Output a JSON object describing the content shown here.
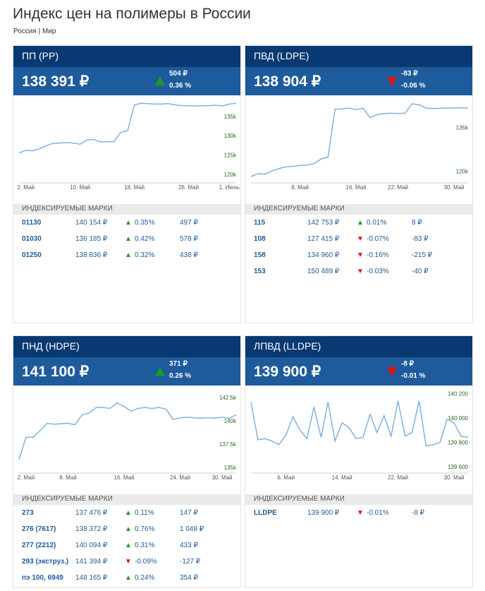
{
  "page": {
    "title": "Индекс цен на полимеры в России",
    "region_russia": "Россия",
    "region_sep": " | ",
    "region_world": "Мир"
  },
  "colors": {
    "header": "#083972",
    "price_bar": "#1e5b9c",
    "up": "#1a9a2b",
    "down": "#e01010",
    "line": "#7fb2e5"
  },
  "cards": [
    {
      "title": "ПП (PP)",
      "price": "138 391 ₽",
      "direction": "up",
      "change_abs": "504 ₽",
      "change_pct": "0.36 %",
      "grades_label": "ИНДЕКСИРУЕМЫЕ МАРКИ",
      "grades": [
        {
          "name": "01130",
          "price": "140 154 ₽",
          "dir": "up",
          "arrow": "▲",
          "pct": "0.35%",
          "abs": "497 ₽"
        },
        {
          "name": "01030",
          "price": "136 185 ₽",
          "dir": "up",
          "arrow": "▲",
          "pct": "0.42%",
          "abs": "578 ₽"
        },
        {
          "name": "01250",
          "price": "138 836 ₽",
          "dir": "up",
          "arrow": "▲",
          "pct": "0.32%",
          "abs": "438 ₽"
        }
      ]
    },
    {
      "title": "ПВД (LDPE)",
      "price": "138 904 ₽",
      "direction": "down",
      "change_abs": "-83 ₽",
      "change_pct": "-0.06 %",
      "grades_label": "ИНДЕКСИРУЕМЫЕ МАРКИ",
      "grades": [
        {
          "name": "115",
          "price": "142 753 ₽",
          "dir": "up",
          "arrow": "▲",
          "pct": "0.01%",
          "abs": "8 ₽"
        },
        {
          "name": "108",
          "price": "127 415 ₽",
          "dir": "down",
          "arrow": "▼",
          "pct": "-0.07%",
          "abs": "-83 ₽"
        },
        {
          "name": "158",
          "price": "134 960 ₽",
          "dir": "down",
          "arrow": "▼",
          "pct": "-0.16%",
          "abs": "-215 ₽"
        },
        {
          "name": "153",
          "price": "150 489 ₽",
          "dir": "down",
          "arrow": "▼",
          "pct": "-0.03%",
          "abs": "-40 ₽"
        }
      ]
    },
    {
      "title": "ПНД (HDPE)",
      "price": "141 100 ₽",
      "direction": "up",
      "change_abs": "371 ₽",
      "change_pct": "0.26 %",
      "grades_label": "ИНДЕКСИРУЕМЫЕ МАРКИ",
      "grades": [
        {
          "name": "273",
          "price": "137 476 ₽",
          "dir": "up",
          "arrow": "▲",
          "pct": "0.11%",
          "abs": "147 ₽"
        },
        {
          "name": "276 (7617)",
          "price": "138 372 ₽",
          "dir": "up",
          "arrow": "▲",
          "pct": "0.76%",
          "abs": "1 048 ₽"
        },
        {
          "name": "277 (2212)",
          "price": "140 094 ₽",
          "dir": "up",
          "arrow": "▲",
          "pct": "0.31%",
          "abs": "433 ₽"
        },
        {
          "name": "293 (экструз.)",
          "price": "141 394 ₽",
          "dir": "down",
          "arrow": "▼",
          "pct": "-0.09%",
          "abs": "-127 ₽"
        },
        {
          "name": "пэ 100, 6949",
          "price": "148 165 ₽",
          "dir": "up",
          "arrow": "▲",
          "pct": "0.24%",
          "abs": "354 ₽"
        }
      ]
    },
    {
      "title": "ЛПВД (LLDPE)",
      "price": "139 900 ₽",
      "direction": "down",
      "change_abs": "-8 ₽",
      "change_pct": "-0.01 %",
      "grades_label": "ИНДЕКСИРУЕМЫЕ МАРКИ",
      "grades": [
        {
          "name": "LLDPE",
          "price": "139 900 ₽",
          "dir": "down",
          "arrow": "▼",
          "pct": "-0.01%",
          "abs": "-8 ₽"
        }
      ]
    }
  ],
  "chart_data": [
    {
      "type": "line",
      "title": "ПП (PP)",
      "ylim": [
        118500,
        139000
      ],
      "yticks": [
        120000,
        125000,
        130000,
        135000
      ],
      "ytick_labels": [
        "120k",
        "125k",
        "130k",
        "135k"
      ],
      "xticks": [
        {
          "x": 2,
          "label": "2. Май"
        },
        {
          "x": 10,
          "label": "10. Май"
        },
        {
          "x": 18,
          "label": "18. Май"
        },
        {
          "x": 26,
          "label": "26. Май"
        },
        {
          "x": 32,
          "label": "1. Июнь"
        }
      ],
      "xlim": [
        1,
        33
      ],
      "x": [
        1,
        2,
        3,
        4,
        5,
        6,
        7,
        8,
        9,
        10,
        11,
        12,
        13,
        14,
        15,
        16,
        17,
        18,
        19,
        20,
        21,
        22,
        23,
        24,
        25,
        26,
        27,
        28,
        29,
        30,
        31,
        32,
        33
      ],
      "y": [
        125500,
        126200,
        126100,
        126600,
        127400,
        128000,
        128100,
        128200,
        128100,
        127800,
        128900,
        129000,
        128400,
        128400,
        128500,
        130900,
        131300,
        138000,
        138400,
        138300,
        138200,
        138200,
        138300,
        138000,
        137800,
        137800,
        137700,
        137800,
        137800,
        137900,
        137700,
        138200,
        138400
      ]
    },
    {
      "type": "line",
      "title": "ПВД (LDPE)",
      "ylim": [
        117000,
        144000
      ],
      "yticks": [
        120000,
        135000
      ],
      "ytick_labels": [
        "120k",
        "135k"
      ],
      "xticks": [
        {
          "x": 8,
          "label": "8. Май"
        },
        {
          "x": 16,
          "label": "16. Май"
        },
        {
          "x": 22,
          "label": "22. Май"
        },
        {
          "x": 30,
          "label": "30. Май"
        }
      ],
      "xlim": [
        1,
        32
      ],
      "x": [
        1,
        2,
        3,
        4,
        5,
        6,
        7,
        8,
        9,
        10,
        11,
        12,
        13,
        14,
        15,
        16,
        17,
        18,
        19,
        20,
        21,
        22,
        23,
        24,
        25,
        26,
        27,
        28,
        29,
        30,
        31,
        32
      ],
      "y": [
        118200,
        119200,
        119000,
        120100,
        120900,
        121500,
        121700,
        122000,
        122100,
        122600,
        124200,
        124800,
        141200,
        141300,
        141600,
        141000,
        141500,
        138300,
        139300,
        139700,
        139800,
        139700,
        139800,
        143000,
        142700,
        141600,
        141400,
        141500,
        141600,
        141600,
        141700,
        141500
      ]
    },
    {
      "type": "line",
      "title": "ПНД (HDPE)",
      "ylim": [
        134700,
        143200
      ],
      "yticks": [
        135000,
        137500,
        140000,
        142500
      ],
      "ytick_labels": [
        "135k",
        "137.5k",
        "140k",
        "142.5k"
      ],
      "xticks": [
        {
          "x": 2,
          "label": "2. Май"
        },
        {
          "x": 8,
          "label": "8. Май"
        },
        {
          "x": 16,
          "label": "16. Май"
        },
        {
          "x": 24,
          "label": "24. Май"
        },
        {
          "x": 30,
          "label": "30. Май"
        }
      ],
      "xlim": [
        1,
        32
      ],
      "x": [
        1,
        2,
        3,
        4,
        5,
        6,
        7,
        8,
        9,
        10,
        11,
        12,
        13,
        14,
        15,
        16,
        17,
        18,
        19,
        20,
        21,
        22,
        23,
        24,
        25,
        26,
        27,
        28,
        29,
        30,
        31,
        32
      ],
      "y": [
        135850,
        138250,
        138250,
        138950,
        139750,
        139650,
        139700,
        139750,
        139600,
        140650,
        140850,
        141450,
        141450,
        141350,
        141950,
        141550,
        141050,
        141350,
        141450,
        141350,
        141450,
        141250,
        140150,
        140350,
        140400,
        140350,
        140300,
        140350,
        140300,
        140400,
        140300,
        140650
      ]
    },
    {
      "type": "line",
      "title": "ЛПВД (LLDPE)",
      "ylim": [
        139570,
        140220
      ],
      "yticks": [
        139600,
        139800,
        140000,
        140200
      ],
      "ytick_labels": [
        "139 600",
        "139 800",
        "140 000",
        "140 200"
      ],
      "xticks": [
        {
          "x": 6,
          "label": "6. Май"
        },
        {
          "x": 14,
          "label": "14. Май"
        },
        {
          "x": 22,
          "label": "22. Май"
        },
        {
          "x": 30,
          "label": "30. Май"
        }
      ],
      "xlim": [
        1,
        32
      ],
      "x": [
        1,
        2,
        3,
        4,
        5,
        6,
        7,
        8,
        9,
        10,
        11,
        12,
        13,
        14,
        15,
        16,
        17,
        18,
        19,
        20,
        21,
        22,
        23,
        24,
        25,
        26,
        27,
        28,
        29,
        30,
        31,
        32
      ],
      "y": [
        140130,
        139820,
        139830,
        139810,
        139780,
        139860,
        140010,
        139900,
        139830,
        140090,
        139840,
        140130,
        139810,
        139960,
        139920,
        139830,
        139840,
        140030,
        139880,
        140020,
        139850,
        140140,
        139850,
        139880,
        140140,
        139770,
        139780,
        139800,
        139990,
        139960,
        139850,
        139840
      ]
    }
  ]
}
